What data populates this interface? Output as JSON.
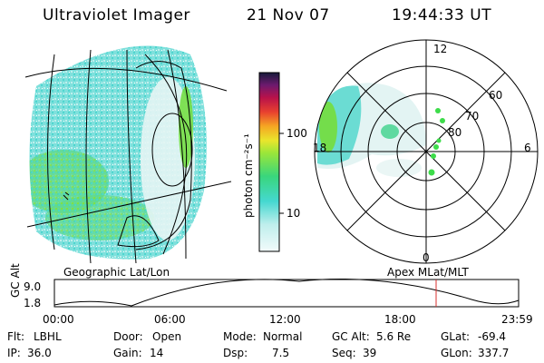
{
  "header": {
    "instrument": "Ultraviolet Imager",
    "date": "21 Nov 07",
    "time": "19:44:33 UT"
  },
  "colorbar": {
    "unit_label": "photon cm⁻²s⁻¹",
    "ticks": [
      "100",
      "10"
    ]
  },
  "polar_plot": {
    "mlt_labels": [
      "12",
      "18",
      "6",
      "0"
    ],
    "lat_labels": [
      "60",
      "70",
      "80"
    ]
  },
  "map_labels": {
    "left": "Geographic Lat/Lon",
    "right": "Apex MLat/MLT"
  },
  "altitude_plot": {
    "axis_label": "GC Alt",
    "ymax": "9.0",
    "ymin": "1.8",
    "time_ticks": [
      "00:00",
      "06:00",
      "12:00",
      "18:00",
      "23:59"
    ],
    "marker_color": "#d9302f"
  },
  "info": {
    "row1": [
      {
        "label": "Flt:",
        "value": "LBHL"
      },
      {
        "label": "Door:",
        "value": "Open"
      },
      {
        "label": "Mode:",
        "value": "Normal"
      },
      {
        "label": "GC Alt:",
        "value": "5.6 Re"
      },
      {
        "label": "GLat:",
        "value": "-69.4"
      }
    ],
    "row2": [
      {
        "label": "IP:",
        "value": "36.0"
      },
      {
        "label": "Gain:",
        "value": "14"
      },
      {
        "label": "Dsp:",
        "value": "7.5"
      },
      {
        "label": "Seq:",
        "value": "39"
      },
      {
        "label": "GLon:",
        "value": "337.7"
      }
    ]
  },
  "colors": {
    "low": "#dff3f2",
    "cyan": "#45d8d0",
    "green": "#6fdc3a",
    "accent_red": "#d9302f"
  }
}
